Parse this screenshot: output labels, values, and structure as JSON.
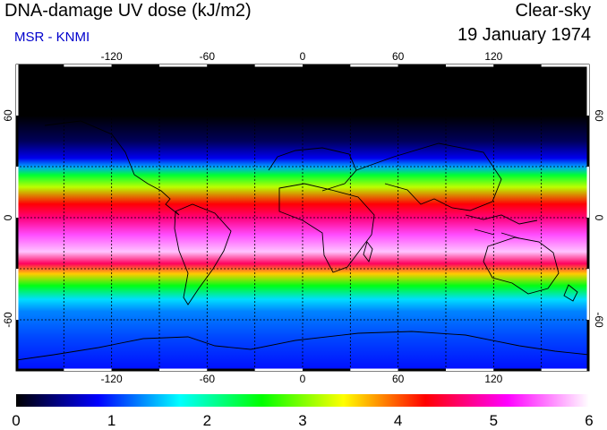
{
  "header": {
    "title": "DNA-damage UV dose (kJ/m2)",
    "subtitle": "MSR - KNMI",
    "condition": "Clear-sky",
    "date": "19 January 1974"
  },
  "colors": {
    "subtitle": "#0000cc",
    "ramp": [
      "#000000",
      "#0000ff",
      "#00ffff",
      "#00ff00",
      "#ffff00",
      "#ff0000",
      "#ff00ff",
      "#ffffff"
    ]
  },
  "map": {
    "lon_ticks": [
      "-120",
      "-60",
      "0",
      "60",
      "120"
    ],
    "lat_ticks": [
      "60",
      "0",
      "-60"
    ],
    "lon_range": [
      -180,
      180
    ],
    "lat_range": [
      -90,
      90
    ],
    "graticule_lon": [
      -150,
      -120,
      -90,
      -60,
      -30,
      0,
      30,
      60,
      90,
      120,
      150
    ],
    "graticule_lat": [
      -60,
      -30,
      0,
      30,
      60
    ],
    "dose_profile": [
      {
        "lat": 90,
        "value": 0.0
      },
      {
        "lat": 60,
        "value": 0.0
      },
      {
        "lat": 45,
        "value": 0.3
      },
      {
        "lat": 35,
        "value": 0.8
      },
      {
        "lat": 30,
        "value": 1.4
      },
      {
        "lat": 25,
        "value": 2.4
      },
      {
        "lat": 18,
        "value": 3.2
      },
      {
        "lat": 8,
        "value": 4.3
      },
      {
        "lat": 0,
        "value": 4.7
      },
      {
        "lat": -10,
        "value": 5.4
      },
      {
        "lat": -20,
        "value": 5.8
      },
      {
        "lat": -27,
        "value": 4.6
      },
      {
        "lat": -33,
        "value": 3.6
      },
      {
        "lat": -40,
        "value": 2.5
      },
      {
        "lat": -48,
        "value": 1.6
      },
      {
        "lat": -55,
        "value": 1.3
      },
      {
        "lat": -70,
        "value": 1.1
      },
      {
        "lat": -90,
        "value": 0.9
      }
    ]
  },
  "colorbar": {
    "labels": [
      "0",
      "1",
      "2",
      "3",
      "4",
      "5",
      "6"
    ],
    "min": 0,
    "max": 6
  }
}
